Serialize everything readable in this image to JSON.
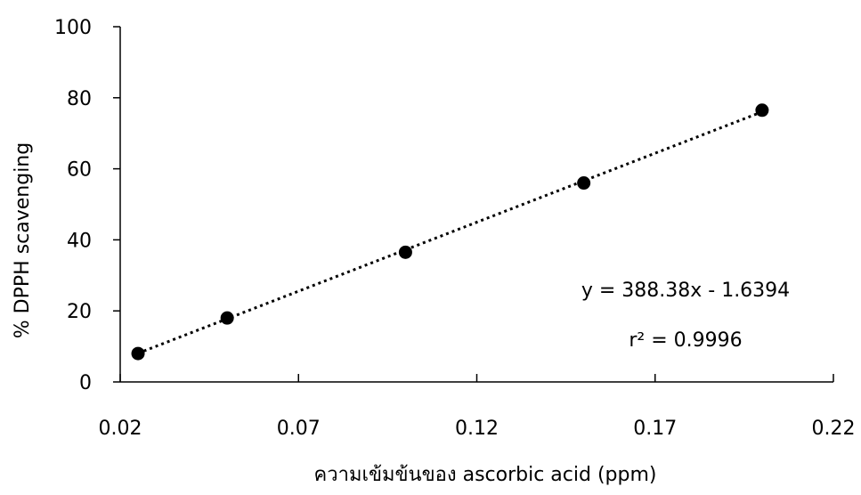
{
  "chart_data": {
    "type": "scatter",
    "xlabel": "ความเข้มข้นของ ascorbic acid (ppm)",
    "ylabel": "% DPPH scavenging",
    "xlim": [
      0.02,
      0.22
    ],
    "ylim": [
      0,
      100
    ],
    "x_ticks": [
      "0.02",
      "0.07",
      "0.12",
      "0.17",
      "0.22"
    ],
    "y_ticks": [
      "0",
      "20",
      "40",
      "60",
      "80",
      "100"
    ],
    "series": [
      {
        "points": [
          {
            "x": 0.025,
            "y": 8
          },
          {
            "x": 0.05,
            "y": 18
          },
          {
            "x": 0.1,
            "y": 36.5
          },
          {
            "x": 0.15,
            "y": 56
          },
          {
            "x": 0.2,
            "y": 76.5
          }
        ]
      }
    ],
    "trendline": {
      "type": "linear",
      "slope": 388.38,
      "intercept": -1.6394,
      "style": "dotted"
    },
    "annotations": [
      "y = 388.38x - 1.6394",
      "r² = 0.9996"
    ],
    "grid": false,
    "legend": "none"
  }
}
